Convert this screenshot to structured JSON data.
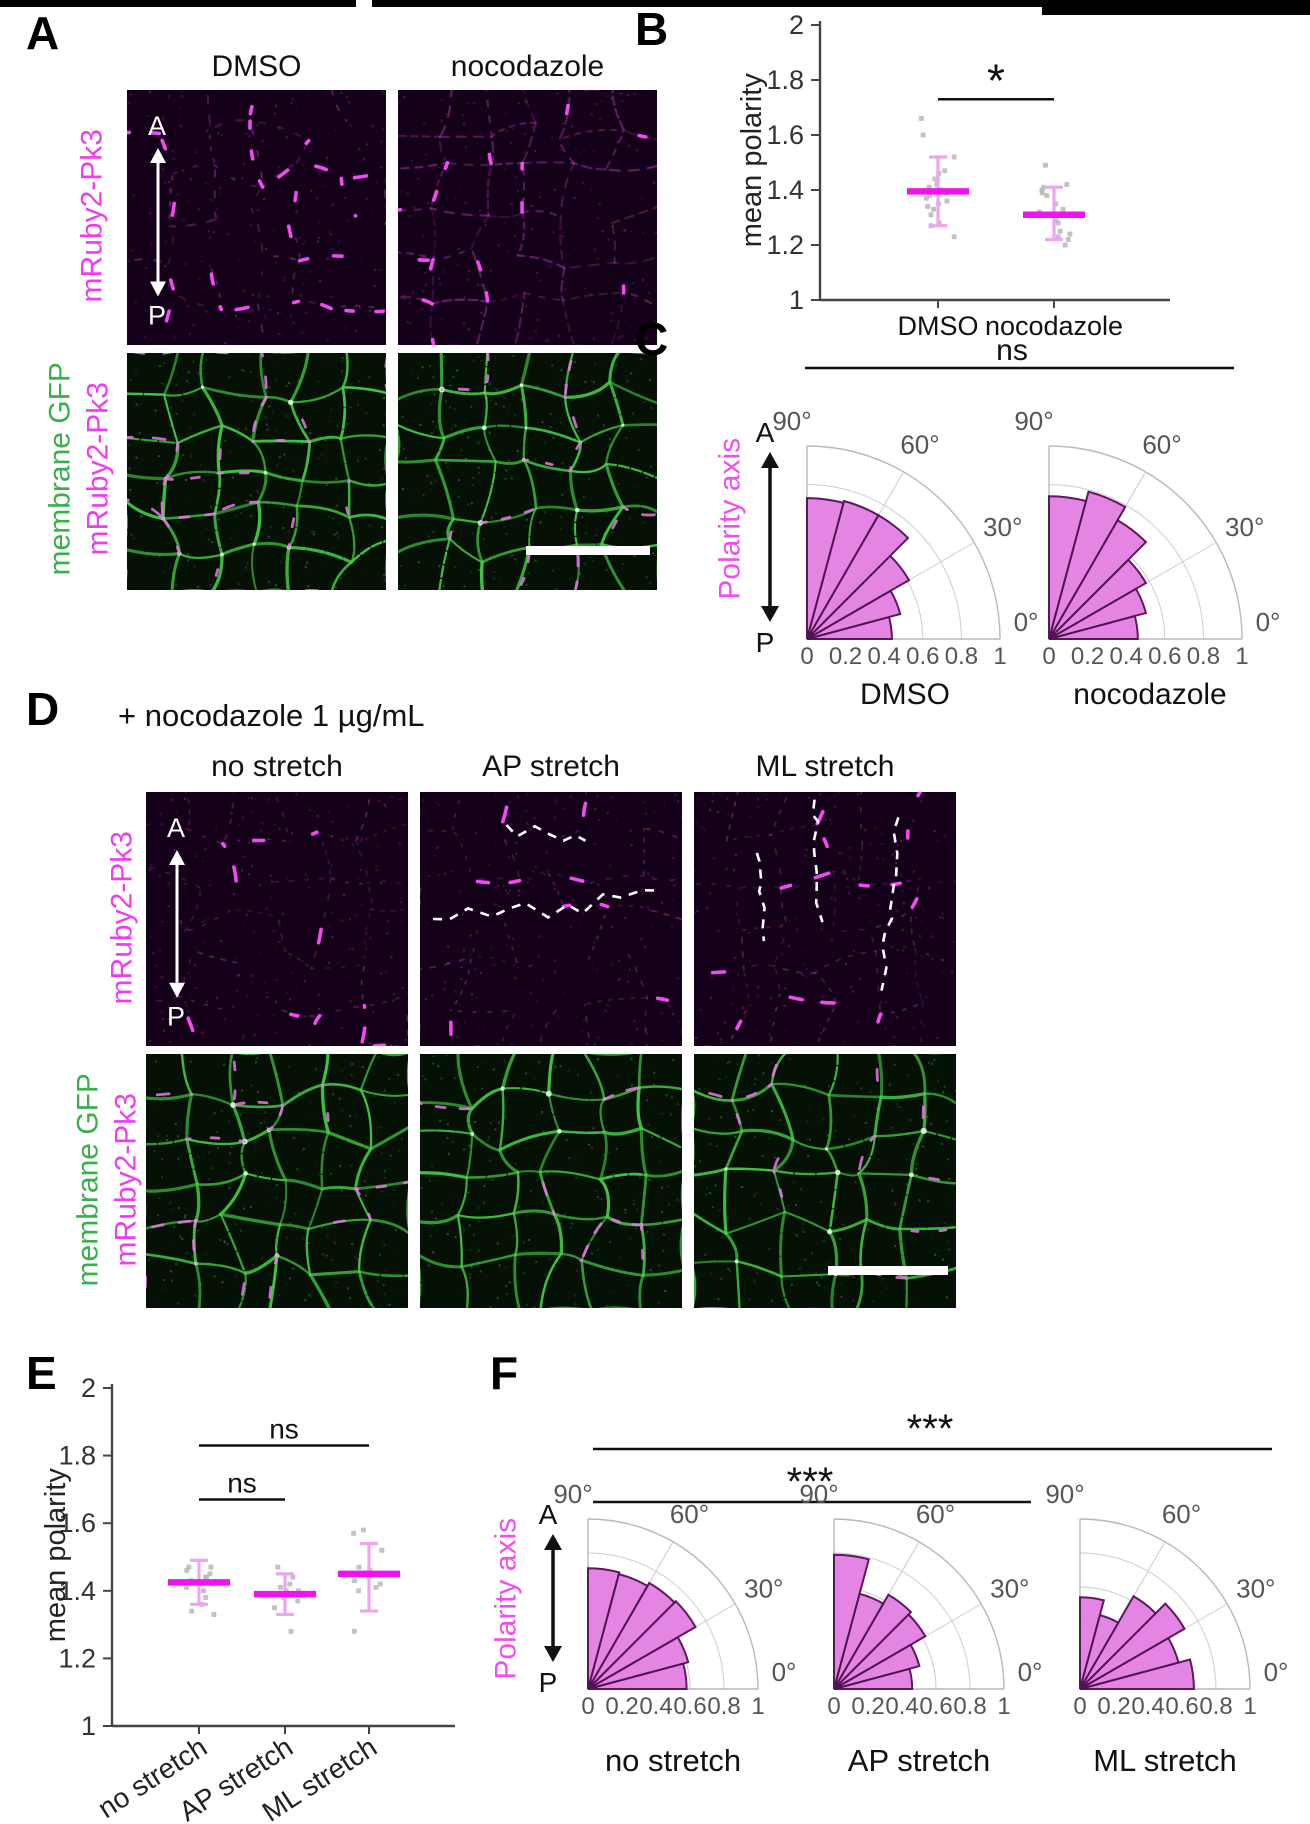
{
  "colors": {
    "mean_line": "#f013f0",
    "error_bar": "#eda6ed",
    "rose_fill": "#e381e3",
    "rose_edge": "#531253",
    "green_label": "#3aaf4c",
    "magenta_label": "#ee3cee",
    "polarity_label": "#ee4fee",
    "point_gray": "#b9b9b9",
    "axis": "#444444",
    "grid": "#cccccc",
    "annotation_white": "#ffffff"
  },
  "panel_a": {
    "label": "A",
    "col_headers": [
      "DMSO",
      "nocodazole"
    ],
    "row1_label": "mRuby2-Pk3",
    "row2_labels": [
      "membrane GFP",
      "mRuby2-Pk3"
    ],
    "orientation": {
      "top": "A",
      "bottom": "P"
    }
  },
  "panel_b": {
    "label": "B"
  },
  "panel_c": {
    "label": "C",
    "significance_label": "ns",
    "polarity_axis_label": "Polarity axis",
    "orientation": {
      "top": "A",
      "bottom": "P"
    }
  },
  "panel_d": {
    "label": "D",
    "title": "+ nocodazole 1 µg/mL",
    "col_headers": [
      "no stretch",
      "AP stretch",
      "ML stretch"
    ],
    "row1_label": "mRuby2-Pk3",
    "row2_labels": [
      "membrane GFP",
      "mRuby2-Pk3"
    ],
    "orientation": {
      "top": "A",
      "bottom": "P"
    }
  },
  "panel_e": {
    "label": "E"
  },
  "panel_f": {
    "label": "F",
    "polarity_axis_label": "Polarity axis",
    "orientation": {
      "top": "A",
      "bottom": "P"
    }
  },
  "chart_data": [
    {
      "type": "scatter",
      "panel": "B",
      "ylabel": "mean polarity",
      "ylim": [
        1,
        2
      ],
      "yticks": [
        1,
        1.2,
        1.4,
        1.6,
        1.8,
        2
      ],
      "categories": [
        "DMSO",
        "nocodazole"
      ],
      "means": [
        1.395,
        1.31
      ],
      "errors": [
        [
          1.27,
          1.52
        ],
        [
          1.22,
          1.41
        ]
      ],
      "points": [
        [
          1.66,
          1.6,
          1.52,
          1.47,
          1.46,
          1.44,
          1.42,
          1.41,
          1.4,
          1.39,
          1.38,
          1.37,
          1.36,
          1.35,
          1.34,
          1.33,
          1.31,
          1.28,
          1.27,
          1.23
        ],
        [
          1.49,
          1.42,
          1.41,
          1.4,
          1.39,
          1.38,
          1.35,
          1.33,
          1.32,
          1.31,
          1.29,
          1.28,
          1.25,
          1.24,
          1.23,
          1.22,
          1.2
        ]
      ],
      "significance": [
        {
          "pair": [
            0,
            1
          ],
          "label": "*",
          "y": 1.73
        }
      ],
      "grid": false,
      "legend": "none"
    },
    {
      "type": "polar_histogram",
      "panel": "C",
      "significance": [
        {
          "pair": [
            0,
            1
          ],
          "label": "ns"
        }
      ],
      "angle_labels": [
        "0°",
        "30°",
        "60°",
        "90°"
      ],
      "radial_ticks": [
        "0",
        "0.2",
        "0.4",
        "0.6",
        "0.8",
        "1"
      ],
      "radial_lim": [
        0,
        1
      ],
      "bin_width_deg": 15,
      "bin_start_deg": [
        0,
        15,
        30,
        45,
        60,
        75
      ],
      "plots": [
        {
          "name": "DMSO",
          "values": [
            0.44,
            0.5,
            0.61,
            0.74,
            0.74,
            0.73
          ]
        },
        {
          "name": "nocodazole",
          "values": [
            0.46,
            0.52,
            0.58,
            0.71,
            0.79,
            0.74
          ]
        }
      ]
    },
    {
      "type": "scatter",
      "panel": "E",
      "ylabel": "mean polarity",
      "ylim": [
        1,
        2
      ],
      "yticks": [
        1,
        1.2,
        1.4,
        1.6,
        1.8,
        2
      ],
      "categories": [
        "no stretch",
        "AP stretch",
        "ML stretch"
      ],
      "means": [
        1.425,
        1.39,
        1.45
      ],
      "errors": [
        [
          1.36,
          1.49
        ],
        [
          1.33,
          1.45
        ],
        [
          1.34,
          1.54
        ]
      ],
      "points": [
        [
          1.47,
          1.47,
          1.46,
          1.45,
          1.44,
          1.44,
          1.43,
          1.42,
          1.41,
          1.4,
          1.38,
          1.36,
          1.34,
          1.33
        ],
        [
          1.47,
          1.44,
          1.42,
          1.41,
          1.4,
          1.4,
          1.39,
          1.38,
          1.37,
          1.35,
          1.28
        ],
        [
          1.58,
          1.57,
          1.52,
          1.47,
          1.46,
          1.44,
          1.43,
          1.42,
          1.41,
          1.4,
          1.28
        ]
      ],
      "significance": [
        {
          "pair": [
            0,
            1
          ],
          "label": "ns",
          "y": 1.67
        },
        {
          "pair": [
            0,
            2
          ],
          "label": "ns",
          "y": 1.83
        }
      ],
      "xticklabel_rotation_deg": -33,
      "grid": false,
      "legend": "none"
    },
    {
      "type": "polar_histogram",
      "panel": "F",
      "significance": [
        {
          "pair": [
            0,
            2
          ],
          "label": "***"
        },
        {
          "pair": [
            0,
            1
          ],
          "label": "***"
        }
      ],
      "angle_labels": [
        "0°",
        "30°",
        "60°",
        "90°"
      ],
      "radial_ticks": [
        "0",
        "0.2",
        "0.4",
        "0.6",
        "0.8",
        "1"
      ],
      "radial_lim": [
        0,
        1
      ],
      "bin_width_deg": 15,
      "bin_start_deg": [
        0,
        15,
        30,
        45,
        60,
        75
      ],
      "plots": [
        {
          "name": "no stretch",
          "values": [
            0.58,
            0.61,
            0.73,
            0.72,
            0.7,
            0.71
          ]
        },
        {
          "name": "AP stretch",
          "values": [
            0.46,
            0.52,
            0.62,
            0.64,
            0.58,
            0.79
          ]
        },
        {
          "name": "ML stretch",
          "values": [
            0.67,
            0.6,
            0.71,
            0.63,
            0.45,
            0.54
          ]
        }
      ]
    }
  ]
}
